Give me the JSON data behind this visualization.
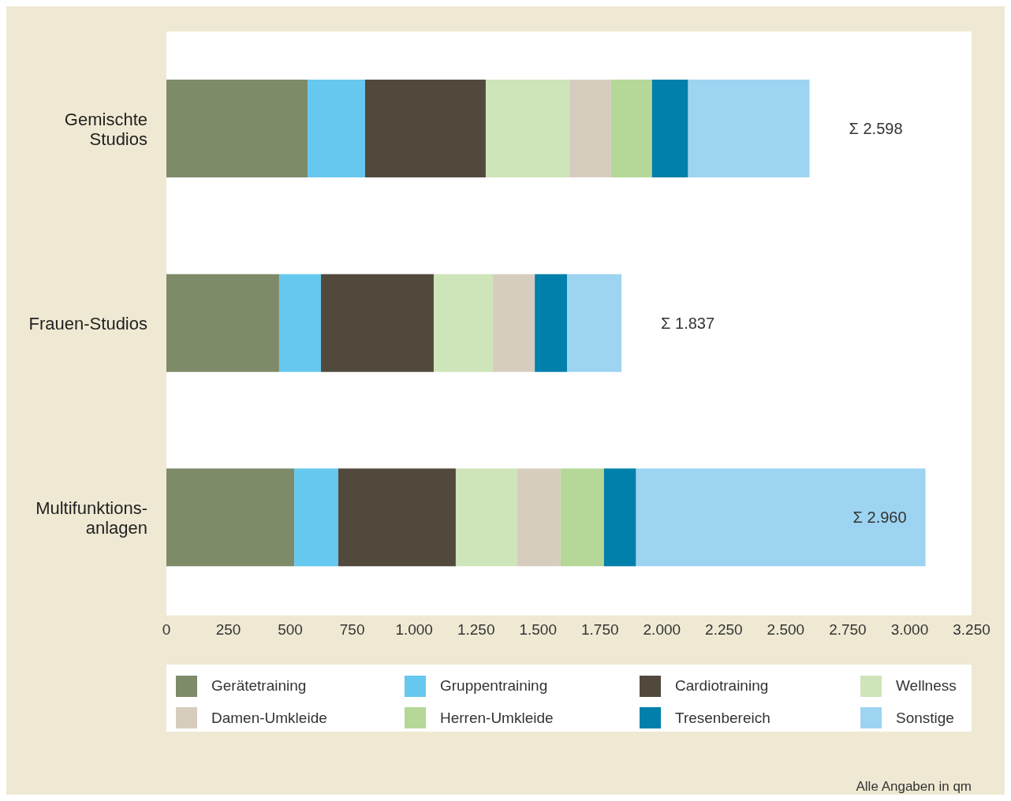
{
  "chart_data": {
    "type": "bar",
    "orientation": "horizontal",
    "stacked": true,
    "categories": [
      "Gemischte\nStudios",
      "Frauen-Studios",
      "Multifunktions-\nanlagen"
    ],
    "series": [
      {
        "name": "Gerätetraining",
        "color": "#7e8b69",
        "values": [
          570,
          455,
          516
        ]
      },
      {
        "name": "Gruppentraining",
        "color": "#66c8ee",
        "values": [
          232,
          169,
          178
        ]
      },
      {
        "name": "Cardiotraining",
        "color": "#51493c",
        "values": [
          487,
          455,
          474
        ]
      },
      {
        "name": "Wellness",
        "color": "#cee4b9",
        "values": [
          337,
          239,
          248
        ]
      },
      {
        "name": "Damen-Umkleide",
        "color": "#d7cdbf",
        "values": [
          169,
          169,
          175
        ]
      },
      {
        "name": "Herren-Umkleide",
        "color": "#b5d898",
        "values": [
          165,
          0,
          175
        ]
      },
      {
        "name": "Tresenbereich",
        "color": "#0080aa",
        "values": [
          146,
          130,
          130
        ]
      },
      {
        "name": "Sonstige",
        "color": "#9dd4f1",
        "values": [
          490,
          220,
          1168
        ]
      }
    ],
    "totals": [
      "Σ  2.598",
      "Σ  1.837",
      "Σ  2.960"
    ],
    "xlim": [
      0,
      3250
    ],
    "xticks": [
      0,
      250,
      500,
      750,
      {
        "value": 1000,
        "label": "1.000"
      },
      {
        "value": 1250,
        "label": "1.250"
      },
      {
        "value": 1500,
        "label": "1.500"
      },
      {
        "value": 1750,
        "label": "1.750"
      },
      {
        "value": 2000,
        "label": "2.000"
      },
      {
        "value": 2250,
        "label": "2.250"
      },
      {
        "value": 2500,
        "label": "2.500"
      },
      {
        "value": 2750,
        "label": "2.750"
      },
      {
        "value": 3000,
        "label": "3.000"
      },
      {
        "value": 3250,
        "label": "3.250"
      }
    ],
    "legend": "bottom",
    "annotations": [
      "Alle Angaben in qm"
    ]
  }
}
